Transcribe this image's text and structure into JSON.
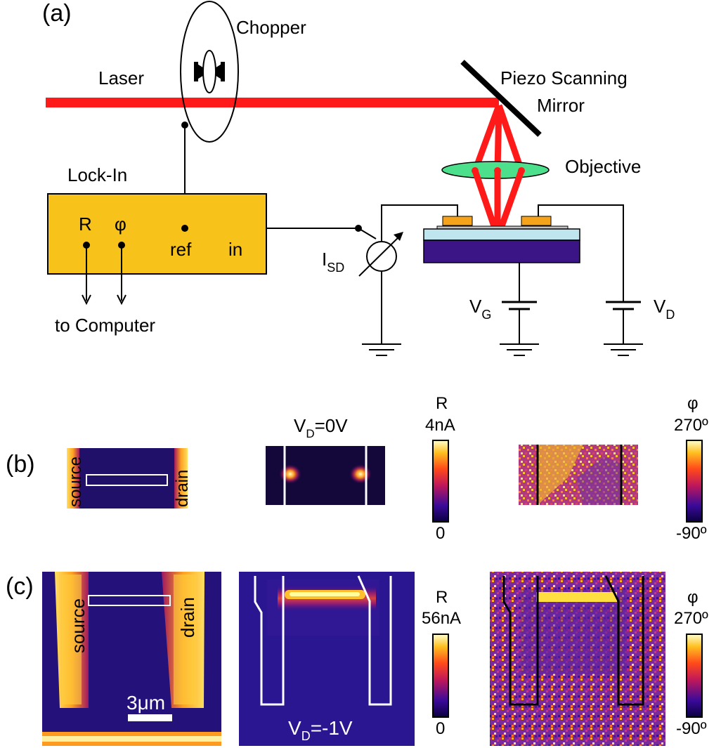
{
  "panel_a": {
    "label": "(a)",
    "laser": "Laser",
    "chopper": "Chopper",
    "mirror_line1": "Piezo Scanning",
    "mirror_line2": "Mirror",
    "objective": "Objective",
    "lockin_title": "Lock-In",
    "lockin_r": "R",
    "lockin_phi": "φ",
    "lockin_ref": "ref",
    "lockin_in": "in",
    "to_computer": "to Computer",
    "isd_main": "I",
    "isd_sub": "SD",
    "vg_main": "V",
    "vg_sub": "G",
    "vd_main": "V",
    "vd_sub": "D",
    "colors": {
      "laser": "#ff1a1a",
      "lockin": "#f7c21a",
      "objective": "#4de08c",
      "contact": "#f5a31a",
      "oxide": "#bfe6ee",
      "substrate": "#3b1585"
    }
  },
  "panel_b": {
    "label": "(b)",
    "source": "source",
    "drain": "drain",
    "title_main": "V",
    "title_sub": "D",
    "title_rest": "=0V",
    "r_label": "R",
    "r_max": "4nA",
    "r_min": "0",
    "phi_label": "φ",
    "phi_max": "270º",
    "phi_min": "-90º"
  },
  "panel_c": {
    "label": "(c)",
    "source": "source",
    "drain": "drain",
    "scale": "3μm",
    "title_main": "V",
    "title_sub": "D",
    "title_rest": "=-1V",
    "r_label": "R",
    "r_max": "56nA",
    "r_min": "0",
    "phi_label": "φ",
    "phi_max": "270º",
    "phi_min": "-90º"
  }
}
